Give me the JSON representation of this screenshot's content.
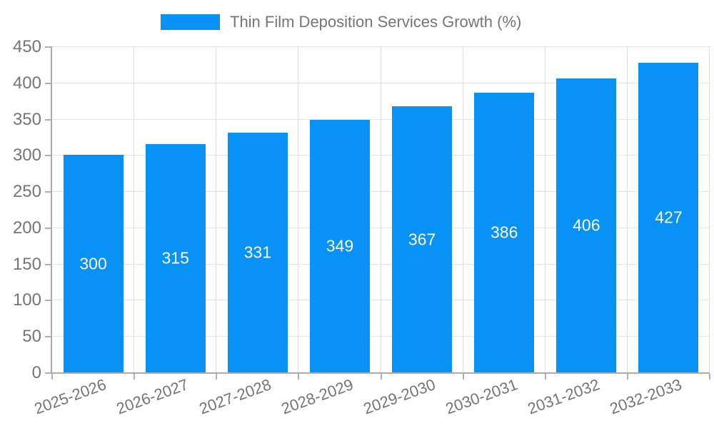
{
  "legend": {
    "label": "Thin Film Deposition Services Growth (%)"
  },
  "chart_data": {
    "type": "bar",
    "title": "",
    "categories": [
      "2025-2026",
      "2026-2027",
      "2027-2028",
      "2028-2029",
      "2029-2030",
      "2030-2031",
      "2031-2032",
      "2032-2033"
    ],
    "values": [
      300,
      315,
      331,
      349,
      367,
      386,
      406,
      427
    ],
    "series": [
      {
        "name": "Thin Film Deposition Services Growth (%)",
        "values": [
          300,
          315,
          331,
          349,
          367,
          386,
          406,
          427
        ]
      }
    ],
    "bar_value_labels": [
      "300",
      "315",
      "331",
      "349",
      "367",
      "386",
      "406",
      "427"
    ],
    "xlabel": "",
    "ylabel": "",
    "ylim": [
      0,
      450
    ],
    "yticks": [
      0,
      50,
      100,
      150,
      200,
      250,
      300,
      350,
      400,
      450
    ],
    "grid": true,
    "legend_position": "top-center",
    "x_label_rotation_deg": -20,
    "value_label_position": "inside-middle",
    "colors": {
      "bar": "#0892f5",
      "bar_value_label": "#ffffff",
      "axis_line": "#ababab",
      "tick": "#b0b0b0",
      "grid_horizontal": "#e4e4e4",
      "grid_vertical": "#dddddd",
      "axis_text": "#757575",
      "legend_text": "#757575",
      "background": "#ffffff"
    }
  }
}
